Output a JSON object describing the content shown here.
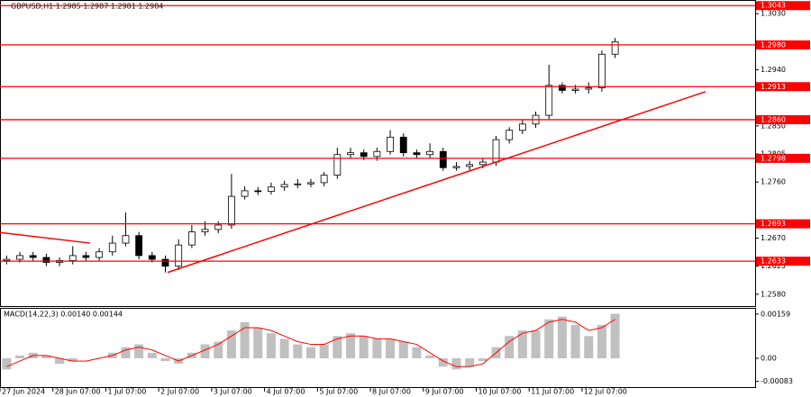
{
  "chart_data": [
    {
      "type": "candlestick",
      "title": "GBPUSD,H1 1.2985 1.2987 1.2981 1.2984",
      "color_up": "#ffffff",
      "color_down": "#000000",
      "categories": [
        "27 Jun 2024",
        null,
        null,
        null,
        "28 Jun 07:00",
        null,
        null,
        null,
        "1 Jul 07:00",
        null,
        null,
        null,
        "2 Jul 07:00",
        null,
        null,
        null,
        "3 Jul 07:00",
        null,
        null,
        null,
        "4 Jul 07:00",
        null,
        null,
        null,
        "5 Jul 07:00",
        null,
        null,
        null,
        "8 Jul 07:00",
        null,
        null,
        null,
        "9 Jul 07:00",
        null,
        null,
        null,
        "10 Jul 07:00",
        null,
        null,
        null,
        "11 Jul 07:00",
        null,
        null,
        null,
        "12 Jul 07:00",
        null,
        null
      ],
      "open": [
        1.2634,
        1.2636,
        1.2642,
        1.2639,
        1.2631,
        1.2634,
        1.2642,
        1.2639,
        1.2648,
        1.2662,
        1.2674,
        1.2642,
        1.2636,
        1.2625,
        1.2659,
        1.268,
        1.2684,
        1.2691,
        1.2737,
        1.2746,
        1.2745,
        1.2752,
        1.2756,
        1.2757,
        1.2759,
        1.2771,
        1.2804,
        1.2807,
        1.2801,
        1.2809,
        1.2832,
        1.2807,
        1.2804,
        1.2809,
        1.2783,
        1.2785,
        1.2788,
        1.2792,
        1.2828,
        1.2843,
        1.2853,
        1.2867,
        1.2915,
        1.2907,
        1.2909,
        1.2911,
        1.2965
      ],
      "high": [
        1.2642,
        1.2648,
        1.2648,
        1.2645,
        1.2639,
        1.2657,
        1.2648,
        1.2654,
        1.2674,
        1.2711,
        1.268,
        1.2648,
        1.2642,
        1.2668,
        1.2691,
        1.2697,
        1.2697,
        1.2773,
        1.2753,
        1.2752,
        1.2759,
        1.2762,
        1.2765,
        1.2765,
        1.2776,
        1.2815,
        1.2815,
        1.2812,
        1.2815,
        1.2843,
        1.2838,
        1.2812,
        1.2822,
        1.2815,
        1.2792,
        1.2794,
        1.2798,
        1.2834,
        1.2848,
        1.2861,
        1.2873,
        1.2948,
        1.292,
        1.2916,
        1.292,
        1.2971,
        1.2991
      ],
      "low": [
        1.2628,
        1.2631,
        1.2634,
        1.2625,
        1.2625,
        1.2628,
        1.2634,
        1.2634,
        1.2642,
        1.2657,
        1.2636,
        1.2631,
        1.2615,
        1.2619,
        1.2654,
        1.2674,
        1.2678,
        1.2685,
        1.2732,
        1.2739,
        1.274,
        1.2746,
        1.275,
        1.2752,
        1.2753,
        1.2765,
        1.2798,
        1.2795,
        1.2794,
        1.2804,
        1.2801,
        1.2798,
        1.2798,
        1.2778,
        1.2778,
        1.2779,
        1.2782,
        1.2786,
        1.2822,
        1.2837,
        1.2847,
        1.2861,
        1.2902,
        1.2902,
        1.2902,
        1.2905,
        1.2959
      ],
      "close": [
        1.2636,
        1.2642,
        1.2639,
        1.2631,
        1.2634,
        1.2642,
        1.2639,
        1.2648,
        1.2662,
        1.2674,
        1.2642,
        1.2636,
        1.2625,
        1.2659,
        1.268,
        1.2684,
        1.2691,
        1.2737,
        1.2746,
        1.2745,
        1.2752,
        1.2756,
        1.2757,
        1.2759,
        1.2771,
        1.2804,
        1.2807,
        1.2801,
        1.2809,
        1.2832,
        1.2807,
        1.2804,
        1.2809,
        1.2783,
        1.2785,
        1.2788,
        1.2792,
        1.2828,
        1.2843,
        1.2853,
        1.2867,
        1.2915,
        1.2907,
        1.2909,
        1.2911,
        1.2965,
        1.2985
      ],
      "ylim": [
        1.2561,
        1.3052
      ],
      "yticks": [
        {
          "value": 1.303,
          "label": "1.3030"
        },
        {
          "value": 1.294,
          "label": "1.2940"
        },
        {
          "value": 1.285,
          "label": "1.2850"
        },
        {
          "value": 1.2805,
          "label": "1.2805"
        },
        {
          "value": 1.276,
          "label": "1.2760"
        },
        {
          "value": 1.267,
          "label": "1.2670"
        },
        {
          "value": 1.2625,
          "label": "1.2625"
        },
        {
          "value": 1.258,
          "label": "1.2580"
        }
      ],
      "levels": [
        {
          "value": 1.3043,
          "label": "1.3043"
        },
        {
          "value": 1.298,
          "label": "1.2980"
        },
        {
          "value": 1.2913,
          "label": "1.2913"
        },
        {
          "value": 1.286,
          "label": "1.2860"
        },
        {
          "value": 1.2798,
          "label": "1.2798"
        },
        {
          "value": 1.2693,
          "label": "1.2693"
        },
        {
          "value": 1.2633,
          "label": "1.2633"
        }
      ],
      "level_color": "#ff0000",
      "trendlines": [
        [
          1.2615,
          1.2905
        ],
        [
          1.2679,
          1.2662
        ]
      ]
    },
    {
      "type": "macd",
      "title": "MACD(14,22,3) 0.00140 0.00144",
      "color": "#c0c0c0",
      "signal_color": "#ff0000",
      "values": [
        -0.0004,
        0.0001,
        0.0002,
        0.0001,
        -0.0002,
        -0.0001,
        0,
        0,
        0.0002,
        0.0004,
        0.0005,
        0.0002,
        -0.0001,
        -0.0002,
        0.0002,
        0.0005,
        0.0006,
        0.001,
        0.0013,
        0.0011,
        0.0009,
        0.0007,
        0.0005,
        0.0004,
        0.0005,
        0.0008,
        0.0009,
        0.0008,
        0.0007,
        0.0007,
        0.0006,
        0.0004,
        0.0001,
        -0.0003,
        -0.0004,
        -0.0003,
        -0.0001,
        0.0004,
        0.0008,
        0.001,
        0.001,
        0.0014,
        0.0015,
        0.0012,
        0.0008,
        0.0012,
        0.0016
      ],
      "signal": [
        -0.0003,
        -0.0001,
        0.0001,
        0.0001,
        0,
        -0.0001,
        -0.0001,
        0,
        0.0001,
        0.0003,
        0.0004,
        0.0003,
        0.0001,
        -0.0001,
        0.0001,
        0.0003,
        0.0005,
        0.0008,
        0.0011,
        0.0011,
        0.001,
        0.0008,
        0.0006,
        0.0005,
        0.0005,
        0.0007,
        0.0008,
        0.0008,
        0.0007,
        0.0007,
        0.0006,
        0.0005,
        0.0002,
        -0.0001,
        -0.0003,
        -0.0003,
        -0.0002,
        0.0002,
        0.0006,
        0.0009,
        0.001,
        0.0013,
        0.0014,
        0.0013,
        0.001,
        0.0011,
        0.0014
      ],
      "ylim": [
        -0.0011,
        0.00178
      ],
      "yticks": [
        0.00159,
        {
          "value": 0,
          "label": "0.00"
        },
        -0.00083
      ]
    }
  ]
}
